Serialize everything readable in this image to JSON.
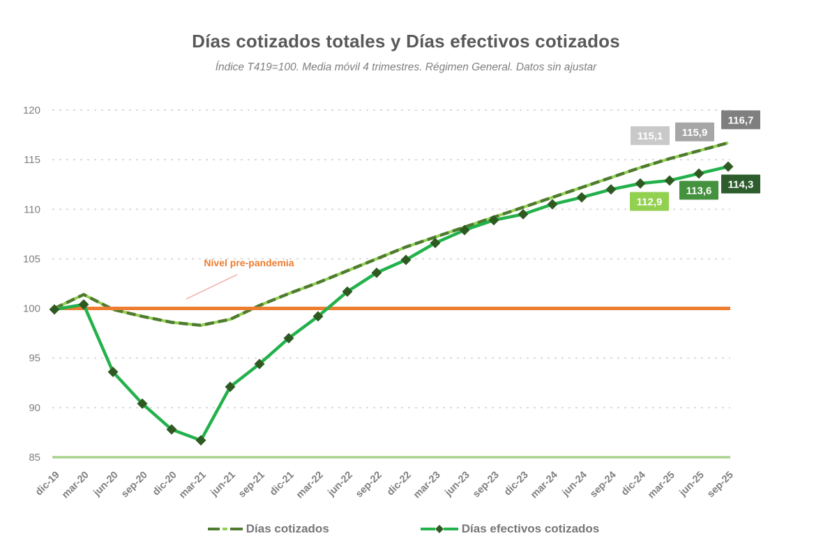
{
  "chart_data": {
    "type": "line",
    "title": "Días cotizados totales y Días efectivos cotizados",
    "subtitle": "Índice T419=100. Media móvil 4 trimestres. Régimen General. Datos sin ajustar",
    "categories": [
      "dic-19",
      "mar-20",
      "jun-20",
      "sep-20",
      "dic-20",
      "mar-21",
      "jun-21",
      "sep-21",
      "dic-21",
      "mar-22",
      "jun-22",
      "sep-22",
      "dic-22",
      "mar-23",
      "jun-23",
      "sep-23",
      "dic-23",
      "mar-24",
      "jun-24",
      "sep-24",
      "dic-24",
      "mar-25",
      "jun-25",
      "sep-25"
    ],
    "yaxis": {
      "min": 85,
      "max": 120,
      "step": 5,
      "ticks": [
        85,
        90,
        95,
        100,
        105,
        110,
        115,
        120
      ]
    },
    "grid": "horizontal dotted, on",
    "legend_position": "bottom",
    "reference_line": {
      "label": "Nivel pre-pandemia",
      "value": 100,
      "color": "#ed7d31",
      "leader_color": "#f0b6ae"
    },
    "series": [
      {
        "name": "Días cotizados",
        "style": "dash-dot",
        "color": "#4e7b2f",
        "accent_color": "#92d050",
        "values": [
          100.0,
          101.4,
          99.9,
          99.2,
          98.6,
          98.3,
          98.9,
          100.3,
          101.5,
          102.6,
          103.8,
          105.0,
          106.2,
          107.2,
          108.2,
          109.2,
          110.2,
          111.2,
          112.2,
          113.2,
          114.2,
          115.1,
          115.9,
          116.7
        ],
        "end_labels": {
          "values": [
            "115,1",
            "115,9",
            "116,7"
          ],
          "box_colors": [
            "#c9c9c9",
            "#a6a6a6",
            "#7f7f7f"
          ],
          "text_color": "#ffffff"
        }
      },
      {
        "name": "Días efectivos cotizados",
        "style": "solid-diamond",
        "color": "#23b14c",
        "marker_color": "#2e5a22",
        "values": [
          99.9,
          100.4,
          93.6,
          90.4,
          87.8,
          86.7,
          92.1,
          94.4,
          97.0,
          99.2,
          101.7,
          103.6,
          104.9,
          106.6,
          107.9,
          108.9,
          109.5,
          110.5,
          111.2,
          112.0,
          112.6,
          112.9,
          113.6,
          114.3
        ],
        "end_labels": {
          "values": [
            "112,9",
            "113,6",
            "114,3"
          ],
          "box_colors": [
            "#92d050",
            "#44913e",
            "#2d5c2d"
          ],
          "text_color": "#ffffff"
        }
      }
    ],
    "baseline_color": "#a9d18e",
    "gridline_color": "#dadada",
    "axis_text_color": "#7f7f7f",
    "title_color": "#595959"
  }
}
